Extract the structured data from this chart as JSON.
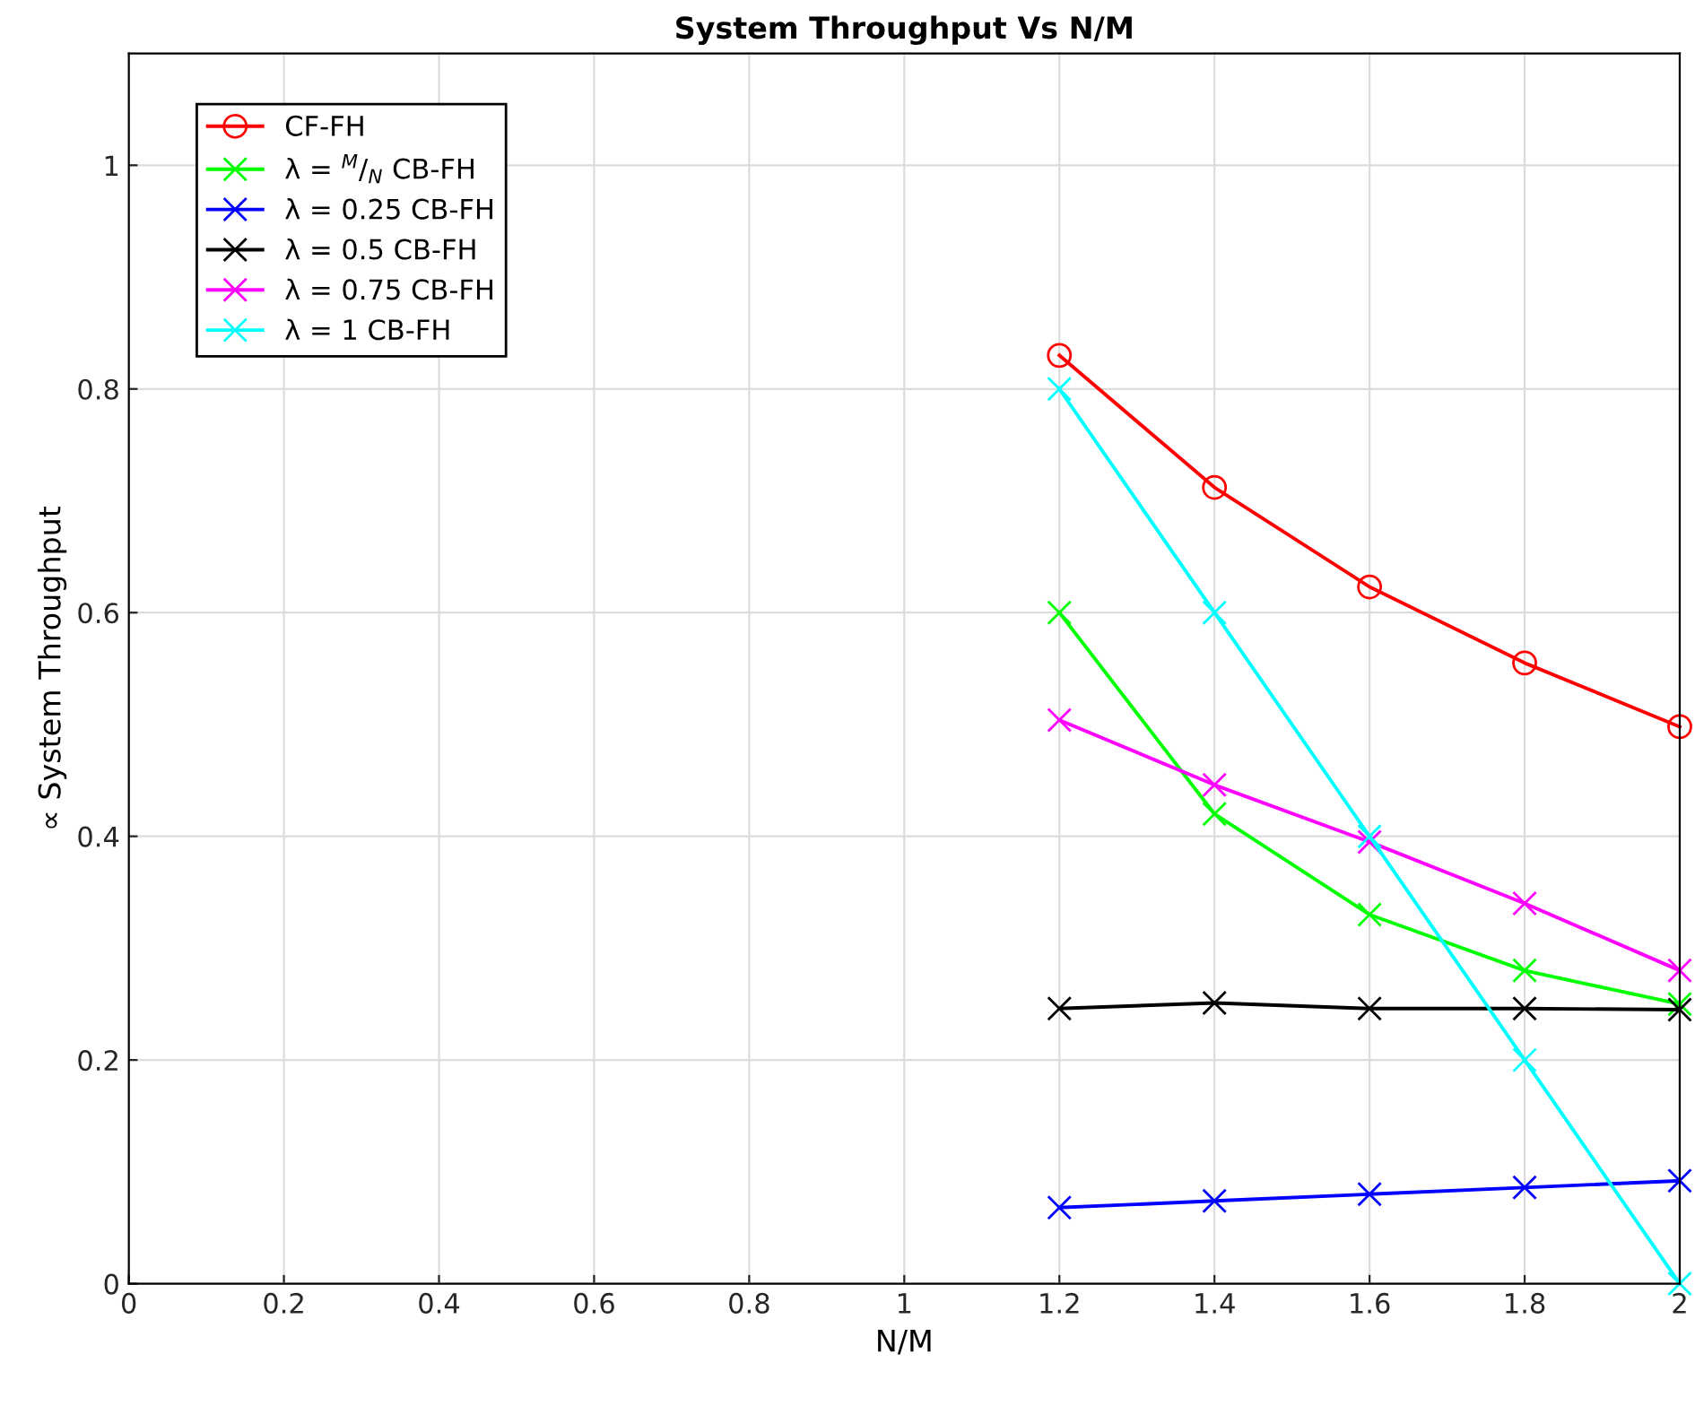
{
  "chart_data": {
    "type": "line",
    "title": "System Throughput Vs N/M",
    "xlabel": "N/M",
    "ylabel": "∝ System Throughput",
    "x": [
      1.2,
      1.4,
      1.6,
      1.8,
      2.0
    ],
    "series": [
      {
        "name": "CF-FH",
        "color": "#ff0000",
        "marker": "circle",
        "values": [
          0.83,
          0.712,
          0.623,
          0.555,
          0.498
        ]
      },
      {
        "name": "λ = $^{M}$/$_{N}$ CB-FH",
        "color": "#00ff00",
        "marker": "cross",
        "values": [
          0.6,
          0.42,
          0.33,
          0.28,
          0.25
        ]
      },
      {
        "name": "λ = 0.25 CB-FH",
        "color": "#0000ff",
        "marker": "cross",
        "values": [
          0.068,
          0.074,
          0.08,
          0.086,
          0.092
        ]
      },
      {
        "name": "λ = 0.5 CB-FH",
        "color": "#000000",
        "marker": "cross",
        "values": [
          0.246,
          0.251,
          0.246,
          0.246,
          0.245
        ]
      },
      {
        "name": "λ = 0.75 CB-FH",
        "color": "#ff00ff",
        "marker": "cross",
        "values": [
          0.504,
          0.446,
          0.395,
          0.34,
          0.28
        ]
      },
      {
        "name": "λ = 1 CB-FH",
        "color": "#00ffff",
        "marker": "cross",
        "values": [
          0.8,
          0.6,
          0.4,
          0.2,
          0.0
        ]
      }
    ],
    "xlim": [
      0,
      2
    ],
    "xticks": [
      0,
      0.2,
      0.4,
      0.6,
      0.8,
      1,
      1.2,
      1.4,
      1.6,
      1.8,
      2
    ],
    "ylim": [
      0,
      1.1
    ],
    "yticks": [
      0,
      0.2,
      0.4,
      0.6,
      0.8,
      1
    ],
    "grid": true,
    "legend": "top left",
    "line_style": "solid"
  }
}
